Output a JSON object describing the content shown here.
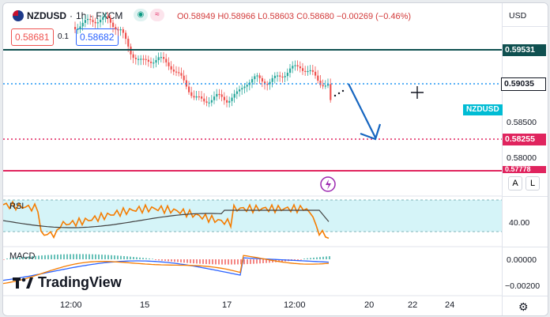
{
  "header": {
    "flag": "nz-us-flag-icon",
    "symbol": "NZDUSD",
    "interval": "1h",
    "exchange": "FXCM",
    "open": "O0.58949",
    "high": "H0.58966",
    "low": "L0.58603",
    "close": "C0.58680",
    "change": "−0.00269 (−0.46%)"
  },
  "sell_price": "0.58681",
  "spread": "0.1",
  "buy_price": "0.58682",
  "currency": "USD",
  "price_labels": {
    "level1": "0.59531",
    "level2": "0.59035",
    "current": "0.58255",
    "symbol_tag": "NZDUSD",
    "partial": "0.57778"
  },
  "price_ticks": [
    "0.58500",
    "0.58000"
  ],
  "axis_buttons": {
    "auto": "A",
    "log": "L"
  },
  "rsi": {
    "label": "RSI",
    "tick": "40.00"
  },
  "macd": {
    "label": "MACD",
    "tick1": "0.00000",
    "tick2": "−0.00200"
  },
  "x_ticks": [
    "12:00",
    "15",
    "17",
    "12:00",
    "20",
    "22",
    "24"
  ],
  "brand": "TradingView",
  "colors": {
    "up": "#26a69a",
    "down": "#ef5350",
    "level_dark": "#0f5050",
    "dotted_blue": "#2196f3",
    "red_level": "#e0245e",
    "arrow": "#1565c0"
  }
}
